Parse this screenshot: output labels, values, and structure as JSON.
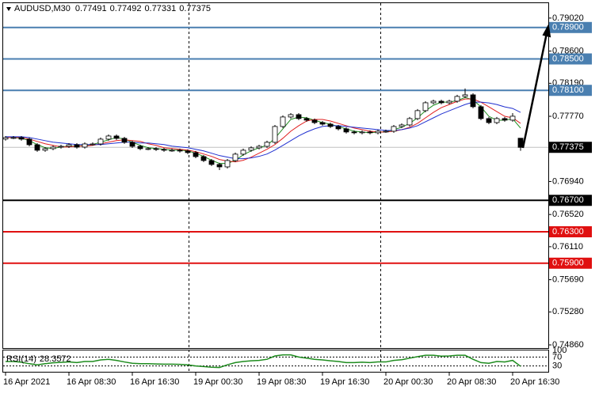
{
  "chart_data": {
    "type": "candlestick",
    "title": "AUDUSD,M30",
    "categories": [
      "16 Apr 2021",
      null,
      null,
      null,
      null,
      null,
      null,
      null,
      "16 Apr 08:30",
      null,
      null,
      null,
      null,
      null,
      null,
      null,
      "16 Apr 16:30",
      null,
      null,
      null,
      null,
      null,
      null,
      null,
      "19 Apr 00:30",
      null,
      null,
      null,
      null,
      null,
      null,
      null,
      "19 Apr 08:30",
      null,
      null,
      null,
      null,
      null,
      null,
      null,
      "19 Apr 16:30",
      null,
      null,
      null,
      null,
      null,
      null,
      null,
      "20 Apr 00:30",
      null,
      null,
      null,
      null,
      null,
      null,
      null,
      "20 Apr 08:30",
      null,
      null,
      null,
      null,
      null,
      null,
      null,
      "20 Apr 16:30",
      null
    ],
    "open": [
      0.7748,
      0.77499,
      0.77499,
      0.77479,
      0.77408,
      0.77338,
      0.77358,
      0.77378,
      0.77388,
      0.77408,
      0.77378,
      0.77418,
      0.77418,
      0.77479,
      0.77519,
      0.77489,
      0.77439,
      0.77388,
      0.77358,
      0.77358,
      0.77348,
      0.77338,
      0.77338,
      0.77328,
      0.77308,
      0.77257,
      0.77207,
      0.77157,
      0.77126,
      0.77207,
      0.77288,
      0.77338,
      0.77368,
      0.77388,
      0.77439,
      0.7764,
      0.77761,
      0.77791,
      0.77741,
      0.77721,
      0.7769,
      0.7767,
      0.7764,
      0.7761,
      0.7757,
      0.7756,
      0.7757,
      0.7756,
      0.7758,
      0.7758,
      0.7764,
      0.7766,
      0.77741,
      0.77842,
      0.77942,
      0.77962,
      0.77942,
      0.77962,
      0.78023,
      0.78043,
      0.77892,
      0.77741,
      0.7769,
      0.77741,
      0.77721,
      0.77491
    ],
    "high": [
      0.77519,
      0.77519,
      0.77519,
      0.77499,
      0.77428,
      0.77378,
      0.77398,
      0.77408,
      0.77428,
      0.77428,
      0.77438,
      0.77438,
      0.77499,
      0.77539,
      0.77539,
      0.77509,
      0.77459,
      0.77408,
      0.77378,
      0.77378,
      0.77368,
      0.77358,
      0.77358,
      0.77348,
      0.77328,
      0.77277,
      0.77227,
      0.77177,
      0.77227,
      0.77308,
      0.77358,
      0.77388,
      0.77408,
      0.77459,
      0.7766,
      0.77781,
      0.77811,
      0.77811,
      0.77761,
      0.77741,
      0.7771,
      0.7769,
      0.7766,
      0.7763,
      0.7759,
      0.7759,
      0.7759,
      0.776,
      0.776,
      0.7766,
      0.7768,
      0.77761,
      0.77862,
      0.77962,
      0.77982,
      0.77982,
      0.77982,
      0.78043,
      0.78124,
      0.78063,
      0.77912,
      0.77761,
      0.77761,
      0.77761,
      0.77811,
      0.77492
    ],
    "low": [
      0.7746,
      0.77479,
      0.77459,
      0.77388,
      0.77318,
      0.77318,
      0.77338,
      0.77358,
      0.77368,
      0.77358,
      0.77358,
      0.77398,
      0.77398,
      0.77459,
      0.77469,
      0.77419,
      0.77368,
      0.77338,
      0.77338,
      0.77328,
      0.77318,
      0.77318,
      0.77308,
      0.77288,
      0.77237,
      0.77187,
      0.77137,
      0.77086,
      0.77106,
      0.77187,
      0.77268,
      0.77318,
      0.77348,
      0.77368,
      0.77419,
      0.7762,
      0.77741,
      0.77721,
      0.77701,
      0.7767,
      0.7765,
      0.7762,
      0.7759,
      0.7755,
      0.7754,
      0.7754,
      0.7754,
      0.7754,
      0.7756,
      0.7756,
      0.7762,
      0.7764,
      0.77721,
      0.77822,
      0.77922,
      0.77922,
      0.77922,
      0.77942,
      0.78003,
      0.77872,
      0.77721,
      0.7767,
      0.7767,
      0.77701,
      0.77701,
      0.77331
    ],
    "close": [
      0.77499,
      0.77499,
      0.77479,
      0.77408,
      0.77338,
      0.77358,
      0.77378,
      0.77388,
      0.77408,
      0.77378,
      0.77418,
      0.77418,
      0.77479,
      0.77519,
      0.77489,
      0.77439,
      0.77388,
      0.77358,
      0.77358,
      0.77348,
      0.77338,
      0.77338,
      0.77328,
      0.77308,
      0.77257,
      0.77207,
      0.77157,
      0.77126,
      0.77207,
      0.77288,
      0.77338,
      0.77368,
      0.77388,
      0.77439,
      0.7764,
      0.77761,
      0.77791,
      0.77741,
      0.77721,
      0.7769,
      0.7767,
      0.7764,
      0.7761,
      0.7757,
      0.7756,
      0.7757,
      0.7756,
      0.7758,
      0.7758,
      0.7764,
      0.7766,
      0.77741,
      0.77842,
      0.77942,
      0.77962,
      0.77942,
      0.77962,
      0.78023,
      0.78043,
      0.77892,
      0.77741,
      0.7769,
      0.77741,
      0.77721,
      0.77771,
      0.77375
    ],
    "up_color": "#ffffff",
    "down_color": "#000000",
    "ma_series": [
      {
        "color": "#1e8c1e",
        "values": [
          0.775,
          0.775,
          0.7749,
          0.7746,
          0.7741,
          0.7737,
          0.7736,
          0.7738,
          0.7739,
          0.7739,
          0.774,
          0.7741,
          0.7744,
          0.7747,
          0.775,
          0.7748,
          0.7744,
          0.774,
          0.7737,
          0.7736,
          0.7735,
          0.7734,
          0.7734,
          0.7733,
          0.773,
          0.7726,
          0.7721,
          0.7717,
          0.7717,
          0.7721,
          0.7728,
          0.7733,
          0.7737,
          0.774,
          0.7749,
          0.7761,
          0.7773,
          0.7776,
          0.7775,
          0.7772,
          0.7769,
          0.7767,
          0.7764,
          0.7761,
          0.7758,
          0.7757,
          0.7756,
          0.7757,
          0.7757,
          0.776,
          0.7763,
          0.7768,
          0.7775,
          0.7784,
          0.7791,
          0.7795,
          0.7795,
          0.7797,
          0.7801,
          0.7798,
          0.7789,
          0.7777,
          0.7772,
          0.7772,
          0.7774,
          0.7762
        ]
      },
      {
        "color": "#e02020",
        "values": [
          0.775,
          0.775,
          0.775,
          0.7748,
          0.7745,
          0.7742,
          0.774,
          0.7738,
          0.7738,
          0.7739,
          0.7739,
          0.774,
          0.7742,
          0.7744,
          0.7746,
          0.7747,
          0.7746,
          0.7745,
          0.7742,
          0.774,
          0.7737,
          0.7736,
          0.7735,
          0.7734,
          0.7732,
          0.7729,
          0.7726,
          0.7722,
          0.772,
          0.7719,
          0.7721,
          0.7725,
          0.773,
          0.7735,
          0.7741,
          0.7749,
          0.7758,
          0.7765,
          0.7771,
          0.7773,
          0.7773,
          0.7771,
          0.7768,
          0.7765,
          0.7762,
          0.776,
          0.7758,
          0.7757,
          0.7757,
          0.7758,
          0.776,
          0.7763,
          0.7768,
          0.7775,
          0.7782,
          0.7788,
          0.7792,
          0.7796,
          0.7799,
          0.7799,
          0.7795,
          0.7789,
          0.7783,
          0.7777,
          0.7775,
          0.7768
        ]
      },
      {
        "color": "#2030d0",
        "values": [
          0.7751,
          0.7751,
          0.7751,
          0.775,
          0.7748,
          0.7746,
          0.7744,
          0.7743,
          0.7742,
          0.7741,
          0.7741,
          0.7741,
          0.7741,
          0.7742,
          0.7743,
          0.7744,
          0.7744,
          0.7743,
          0.7743,
          0.7742,
          0.7741,
          0.7739,
          0.7738,
          0.7737,
          0.7735,
          0.7733,
          0.773,
          0.7727,
          0.7725,
          0.7723,
          0.7723,
          0.7724,
          0.7726,
          0.7729,
          0.7734,
          0.774,
          0.7746,
          0.7752,
          0.7757,
          0.7761,
          0.7764,
          0.7765,
          0.7765,
          0.7764,
          0.7763,
          0.7762,
          0.7761,
          0.776,
          0.7759,
          0.7759,
          0.776,
          0.7762,
          0.7765,
          0.777,
          0.7775,
          0.778,
          0.7784,
          0.7788,
          0.7792,
          0.7795,
          0.7795,
          0.7794,
          0.7792,
          0.7789,
          0.7787,
          0.7782
        ]
      }
    ],
    "ylim": [
      0.7482,
      0.7921
    ],
    "yticks": [
      {
        "value": 0.7902,
        "label": "0.79020"
      },
      {
        "value": 0.786,
        "label": "0.78600"
      },
      {
        "value": 0.7819,
        "label": "0.78190"
      },
      {
        "value": 0.7777,
        "label": "0.77770"
      },
      {
        "value": 0.7694,
        "label": "0.76940"
      },
      {
        "value": 0.7652,
        "label": "0.76520"
      },
      {
        "value": 0.7611,
        "label": "0.76110"
      },
      {
        "value": 0.7569,
        "label": "0.75690"
      },
      {
        "value": 0.7528,
        "label": "0.75280"
      },
      {
        "value": 0.7486,
        "label": "0.74860"
      }
    ],
    "levels": [
      {
        "value": 0.789,
        "label": "0.78900",
        "color": "#4a7fb0"
      },
      {
        "value": 0.785,
        "label": "0.78500",
        "color": "#4a7fb0"
      },
      {
        "value": 0.781,
        "label": "0.78100",
        "color": "#4a7fb0"
      },
      {
        "value": 0.767,
        "label": "0.76700",
        "color": "#000000"
      },
      {
        "value": 0.763,
        "label": "0.76300",
        "color": "#e01010"
      },
      {
        "value": 0.759,
        "label": "0.75900",
        "color": "#e01010"
      }
    ],
    "current_price_color": "#c0c0c0",
    "rsi": {
      "name": "RSI(14)",
      "color": "#1e8c1e",
      "ylim": [
        0,
        100
      ],
      "yticks": [
        100,
        70,
        30
      ],
      "values": [
        50,
        50,
        47,
        40,
        35,
        40,
        44,
        46,
        48,
        45,
        50,
        50,
        57,
        60,
        55,
        48,
        42,
        40,
        40,
        39,
        38,
        38,
        37,
        35,
        30,
        27,
        24,
        23,
        35,
        45,
        50,
        53,
        55,
        60,
        75,
        80,
        80,
        70,
        65,
        60,
        57,
        53,
        50,
        45,
        45,
        47,
        45,
        48,
        48,
        55,
        58,
        65,
        72,
        78,
        78,
        74,
        75,
        78,
        78,
        60,
        45,
        42,
        50,
        48,
        55,
        28.3572
      ]
    }
  }
}
